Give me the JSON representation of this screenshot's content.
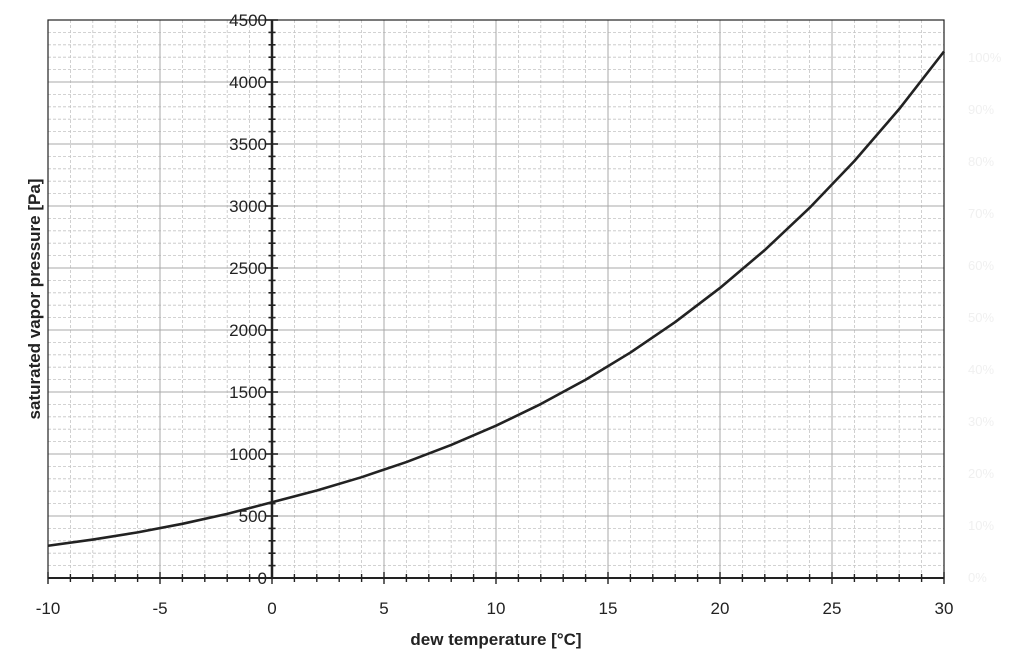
{
  "chart_data": {
    "type": "line",
    "title": "",
    "xlabel": "dew temperature [°C]",
    "ylabel": "saturated vapor pressure [Pa]",
    "xlim": [
      -10,
      30
    ],
    "ylim": [
      0,
      4500
    ],
    "x_ticks": [
      -10,
      -5,
      0,
      5,
      10,
      15,
      20,
      25,
      30
    ],
    "y_ticks": [
      0,
      500,
      1000,
      1500,
      2000,
      2500,
      3000,
      3500,
      4000,
      4500
    ],
    "grid": true,
    "legend": "none",
    "series": [
      {
        "color": "#222222",
        "x": [
          -10,
          -8,
          -6,
          -4,
          -2,
          0,
          2,
          4,
          6,
          8,
          10,
          12,
          14,
          16,
          18,
          20,
          22,
          24,
          26,
          28,
          30
        ],
        "y": [
          260,
          310,
          368,
          437,
          517,
          611,
          706,
          813,
          935,
          1073,
          1228,
          1403,
          1599,
          1818,
          2064,
          2339,
          2645,
          2985,
          3363,
          3782,
          4246
        ]
      }
    ],
    "right_axis_labels": [
      "100%",
      "90%",
      "80%",
      "70%",
      "60%",
      "50%",
      "40%",
      "30%",
      "20%",
      "10%",
      "0%"
    ]
  }
}
